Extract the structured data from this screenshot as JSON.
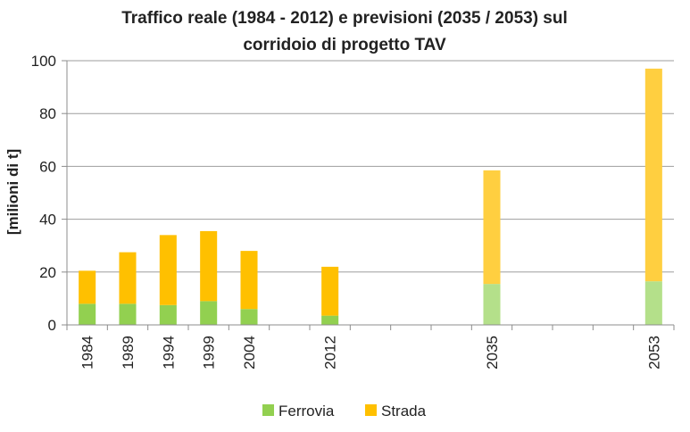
{
  "chart_data": {
    "type": "bar",
    "stacked": true,
    "title": [
      "Traffico reale (1984 - 2012) e previsioni (2035 / 2053) sul",
      "corridoio di progetto TAV"
    ],
    "ylabel": "[milioni di t]",
    "xlabel": "",
    "ylim": [
      0,
      100
    ],
    "yticks": [
      0,
      20,
      40,
      60,
      80,
      100
    ],
    "grid": true,
    "legend_position": "bottom",
    "x_axis_slots": [
      "1984",
      "1989",
      "1994",
      "1999",
      "2004",
      "",
      "2012",
      "",
      "",
      "",
      "2035",
      "",
      "",
      "",
      "2053"
    ],
    "categories": [
      "1984",
      "1989",
      "1994",
      "1999",
      "2004",
      "2012",
      "2035",
      "2053"
    ],
    "series": [
      {
        "name": "Ferrovia",
        "values": [
          8,
          8,
          7.5,
          9,
          6,
          3.5,
          15.5,
          16.5
        ],
        "color": "#92d050",
        "forecast_color": "#b4e08a"
      },
      {
        "name": "Strada",
        "values": [
          12.5,
          19.5,
          26.5,
          26.5,
          22,
          18.5,
          43,
          80.5
        ],
        "color": "#ffc000",
        "forecast_color": "#ffcf40"
      }
    ],
    "forecast_categories": [
      "2035",
      "2053"
    ]
  }
}
